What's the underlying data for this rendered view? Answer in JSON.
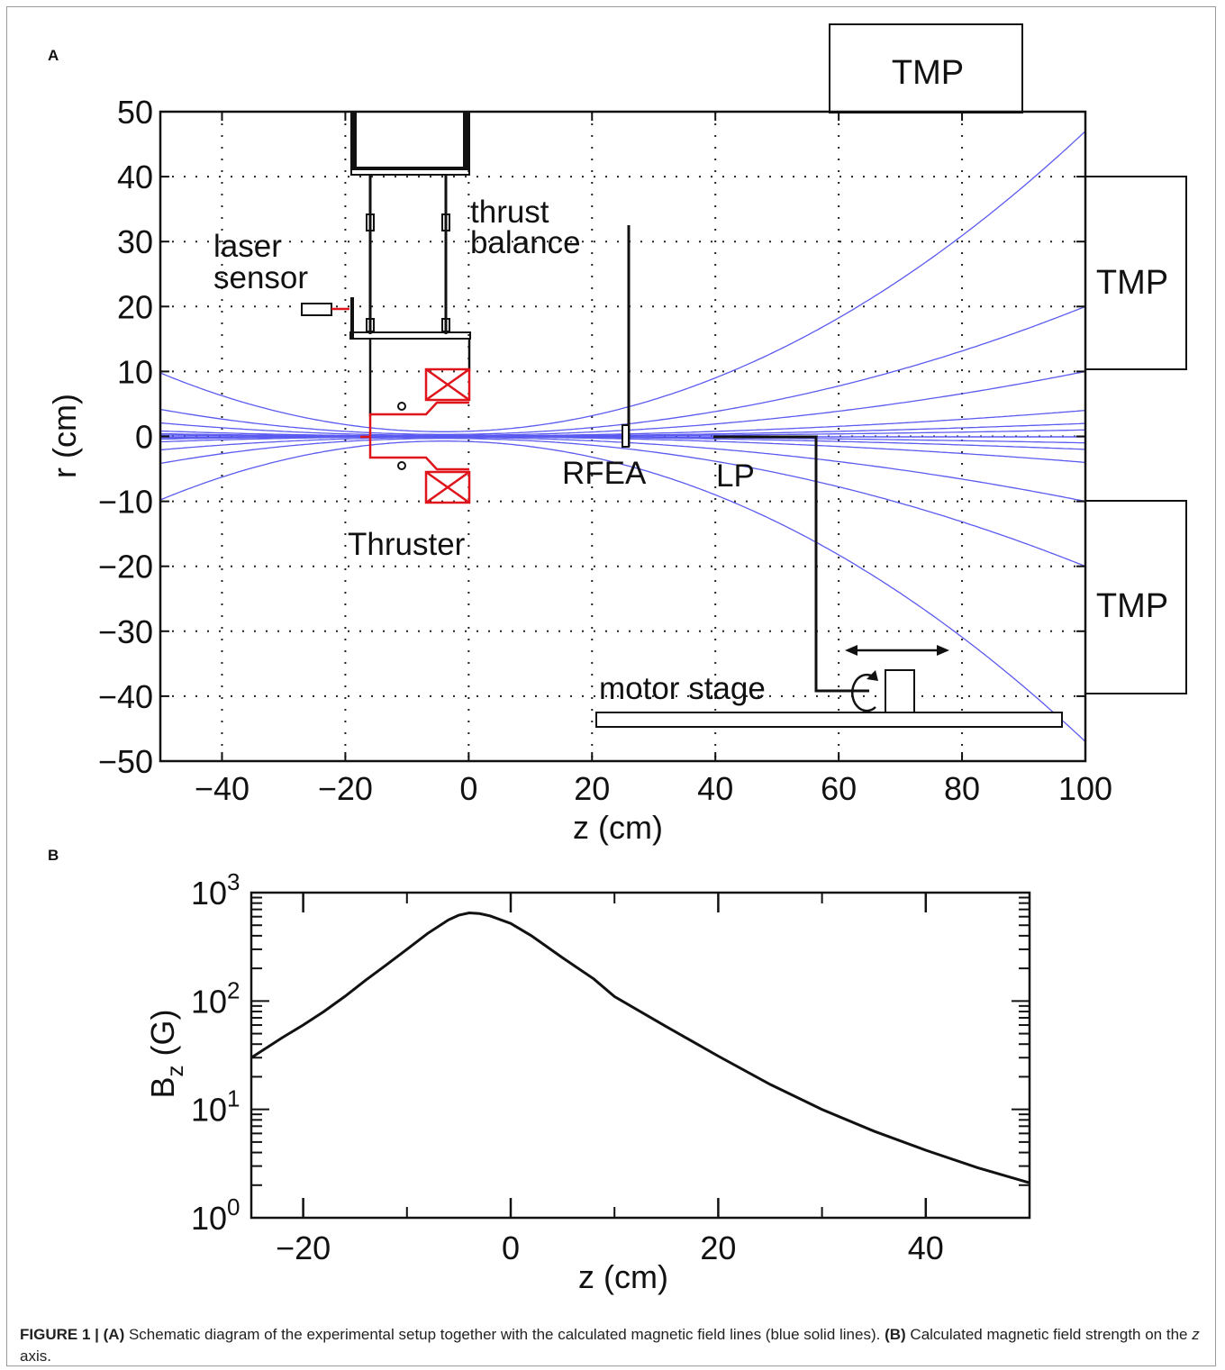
{
  "panel_a_label": "A",
  "panel_b_label": "B",
  "caption": {
    "figure_ref": "FIGURE 1 |",
    "a_ref": "(A)",
    "a_text": " Schematic diagram of the experimental setup together with the calculated magnetic field lines (blue solid lines). ",
    "b_ref": "(B)",
    "b_text": " Calculated magnetic field strength on the ",
    "b_axis": "z",
    "b_end": " axis."
  },
  "diagram": {
    "labels": {
      "tmp": "TMP",
      "laser_sensor_line1": "laser",
      "laser_sensor_line2": "sensor",
      "thrust_balance_line1": "thrust",
      "thrust_balance_line2": "balance",
      "thruster": "Thruster",
      "rfea": "RFEA",
      "lp": "LP",
      "motor_stage": "motor stage"
    },
    "colors": {
      "field_lines": "#5b5bf0",
      "thruster": "#e0141b",
      "structure": "#111111"
    }
  },
  "chart_data": [
    {
      "panel": "A",
      "type": "scatter",
      "title": "",
      "xlabel": "z (cm)",
      "ylabel": "r (cm)",
      "xlim": [
        -50,
        100
      ],
      "ylim": [
        -50,
        50
      ],
      "x_ticks": [
        -40,
        -20,
        0,
        20,
        40,
        60,
        80,
        100
      ],
      "y_ticks": [
        50,
        40,
        30,
        20,
        10,
        0,
        -10,
        -20,
        -30,
        -40,
        -50
      ],
      "x_tick_labels": [
        "−40",
        "−20",
        "0",
        "20",
        "40",
        "60",
        "80",
        "100"
      ],
      "y_tick_labels": [
        "50",
        "40",
        "30",
        "20",
        "10",
        "0",
        "−10",
        "−20",
        "−30",
        "−40",
        "−50"
      ],
      "grid": "dotted",
      "field_line_center_z": -4,
      "field_line_end_r_at_z100": [
        47,
        20,
        10,
        4,
        2,
        1,
        -1,
        -2,
        -4,
        -10,
        -20,
        -47
      ]
    },
    {
      "panel": "B",
      "type": "line",
      "title": "",
      "xlabel": "z (cm)",
      "ylabel": "B",
      "ylabel_sub": "z",
      "ylabel_unit": " (G)",
      "xlim": [
        -25,
        50
      ],
      "ylim": [
        1,
        1000
      ],
      "yscale": "log",
      "x_ticks": [
        -20,
        0,
        20,
        40
      ],
      "x_tick_labels": [
        "−20",
        "0",
        "20",
        "40"
      ],
      "y_tick_labels": [
        {
          "base": "10",
          "exp": "0"
        },
        {
          "base": "10",
          "exp": "1"
        },
        {
          "base": "10",
          "exp": "2"
        },
        {
          "base": "10",
          "exp": "3"
        }
      ],
      "series": [
        {
          "x": [
            -25,
            -22,
            -20,
            -18,
            -16,
            -14,
            -12,
            -10,
            -8,
            -6,
            -5,
            -4,
            -3,
            -2,
            0,
            2,
            5,
            8,
            10,
            15,
            20,
            25,
            30,
            35,
            40,
            45,
            50
          ],
          "y": [
            30,
            46,
            60,
            80,
            110,
            155,
            215,
            300,
            420,
            560,
            620,
            650,
            640,
            610,
            520,
            400,
            250,
            160,
            110,
            58,
            31,
            17,
            10,
            6.3,
            4.2,
            2.9,
            2.1
          ]
        }
      ]
    }
  ]
}
